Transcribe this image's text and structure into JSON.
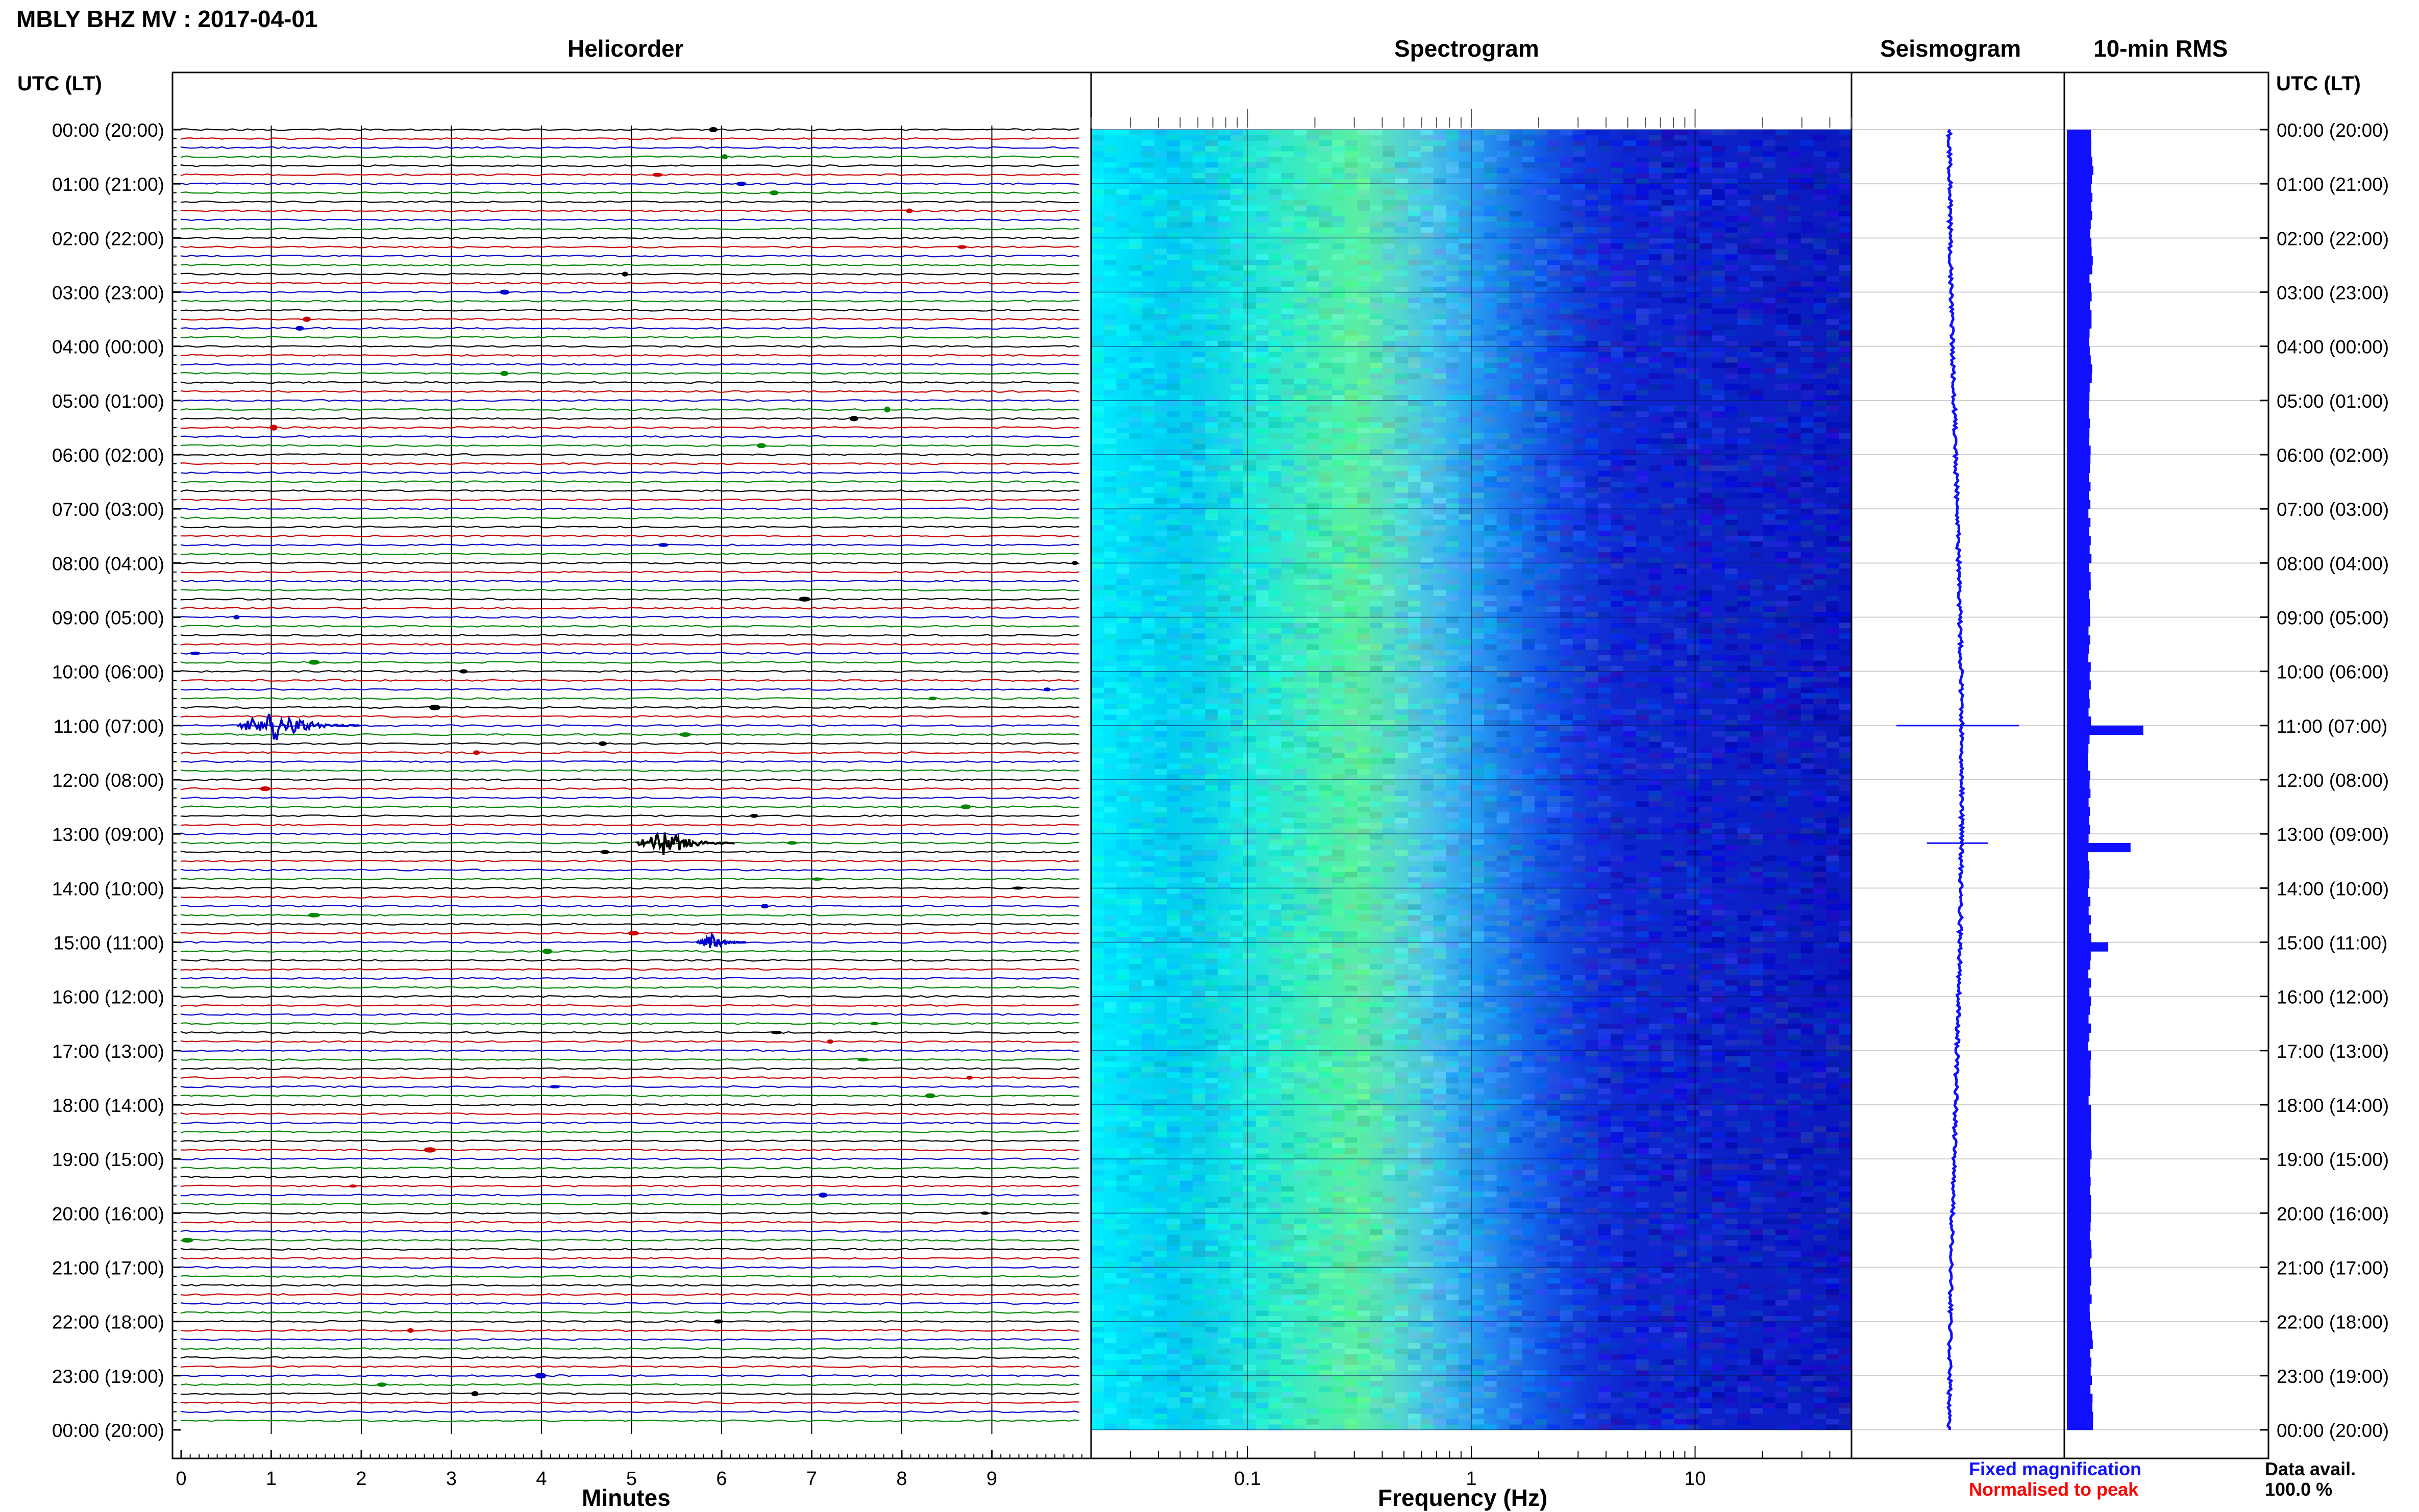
{
  "title": "MBLY BHZ MV : 2017-04-01",
  "left_axis_header": "UTC (LT)",
  "right_axis_header": "UTC (LT)",
  "panels": {
    "helicorder": "Helicorder",
    "spectrogram": "Spectrogram",
    "seismogram": "Seismogram",
    "rms": "10-min RMS"
  },
  "x_axes": {
    "helicorder_label": "Minutes",
    "spectrogram_label": "Frequency (Hz)"
  },
  "legend": {
    "fixed": "Fixed magnification",
    "normalised": "Normalised to peak",
    "fixed_color": "#1010ff",
    "normalised_color": "#ff0000"
  },
  "data_avail": {
    "label": "Data avail.",
    "value": "100.0 %"
  },
  "chart_data": {
    "type": "heatmap",
    "time_labels": [
      "00:00 (20:00)",
      "01:00 (21:00)",
      "02:00 (22:00)",
      "03:00 (23:00)",
      "04:00 (00:00)",
      "05:00 (01:00)",
      "06:00 (02:00)",
      "07:00 (03:00)",
      "08:00 (04:00)",
      "09:00 (05:00)",
      "10:00 (06:00)",
      "11:00 (07:00)",
      "12:00 (08:00)",
      "13:00 (09:00)",
      "14:00 (10:00)",
      "15:00 (11:00)",
      "16:00 (12:00)",
      "17:00 (13:00)",
      "18:00 (14:00)",
      "19:00 (15:00)",
      "20:00 (16:00)",
      "21:00 (17:00)",
      "22:00 (18:00)",
      "23:00 (19:00)",
      "00:00 (20:00)"
    ],
    "helicorder": {
      "xlabel": "Minutes",
      "xlim": [
        0,
        10
      ],
      "x_ticks": [
        "0",
        "1",
        "2",
        "3",
        "4",
        "5",
        "6",
        "7",
        "8",
        "9"
      ],
      "rows_per_hour": 6,
      "row_colors": [
        "#000000",
        "#cc0000",
        "#0000cc",
        "#008800"
      ],
      "events": [
        {
          "hour": 11.0,
          "minute": 1.3,
          "amplitude": 3.0,
          "color": "#0000cc"
        },
        {
          "hour": 13.17,
          "minute": 5.6,
          "amplitude": 2.4,
          "color": "#000000"
        },
        {
          "hour": 15.0,
          "minute": 6.0,
          "amplitude": 1.2,
          "color": "#0000cc"
        }
      ]
    },
    "spectrogram": {
      "xlabel": "Frequency (Hz)",
      "x_scale": "log",
      "xlim": [
        0.02,
        50
      ],
      "x_ticks": [
        "0.1",
        "1",
        "10"
      ]
    },
    "seismogram": {
      "events": [
        {
          "hour": 11.0,
          "amplitude": 1.0
        },
        {
          "hour": 13.17,
          "amplitude": 0.5
        }
      ]
    },
    "rms": {
      "interval_minutes": 10,
      "peaks": [
        {
          "hour": 11.0,
          "value": 2.4
        },
        {
          "hour": 13.17,
          "value": 2.0
        },
        {
          "hour": 15.0,
          "value": 1.3
        }
      ]
    }
  }
}
